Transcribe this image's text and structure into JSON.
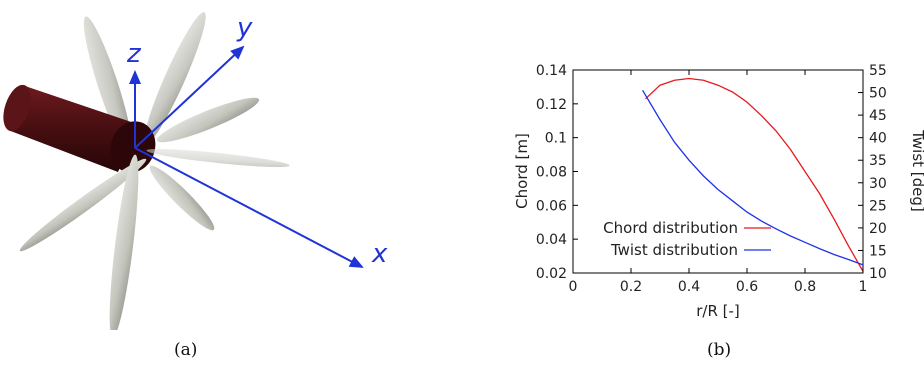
{
  "figure": {
    "caption_a": "(a)",
    "caption_b": "(b)"
  },
  "rotor_view": {
    "axis_labels": {
      "x": "x",
      "y": "y",
      "z": "z"
    },
    "blade_count": 9,
    "colors": {
      "hub": "#4a0f12",
      "blade": "#c9cbc4",
      "axes": "#1f33d6"
    }
  },
  "chart_data": {
    "type": "line",
    "xlabel": "r/R [-]",
    "ylabel": "Chord [m]",
    "ylabel_right": "Twist [deg]",
    "xlim": [
      0,
      1
    ],
    "ylim": [
      0.02,
      0.14
    ],
    "ylim_right": [
      10,
      55
    ],
    "x_ticks": [
      "0",
      "0.2",
      "0.4",
      "0.6",
      "0.8",
      "1"
    ],
    "y_ticks": [
      "0.02",
      "0.04",
      "0.06",
      "0.08",
      "0.1",
      "0.12",
      "0.14"
    ],
    "y_ticks_right": [
      "10",
      "15",
      "20",
      "25",
      "30",
      "35",
      "40",
      "45",
      "50",
      "55"
    ],
    "legend_position": "bottom-left",
    "grid": false,
    "series": [
      {
        "name": "Chord distribution",
        "axis": "left",
        "color": "#e8191e",
        "x": [
          0.25,
          0.3,
          0.35,
          0.4,
          0.45,
          0.5,
          0.55,
          0.6,
          0.65,
          0.7,
          0.75,
          0.8,
          0.85,
          0.9,
          0.95,
          0.98,
          1.0
        ],
        "y": [
          0.123,
          0.131,
          0.134,
          0.135,
          0.134,
          0.131,
          0.127,
          0.121,
          0.113,
          0.104,
          0.093,
          0.08,
          0.067,
          0.052,
          0.036,
          0.027,
          0.021
        ]
      },
      {
        "name": "Twist distribution",
        "axis": "right",
        "color": "#1f33e8",
        "x": [
          0.24,
          0.3,
          0.35,
          0.4,
          0.45,
          0.5,
          0.55,
          0.6,
          0.65,
          0.7,
          0.75,
          0.8,
          0.85,
          0.9,
          0.95,
          1.0
        ],
        "y": [
          50.5,
          44,
          39,
          35,
          31.5,
          28.5,
          26,
          23.5,
          21.5,
          19.8,
          18.2,
          16.8,
          15.4,
          14.1,
          13,
          11.8
        ]
      }
    ]
  }
}
